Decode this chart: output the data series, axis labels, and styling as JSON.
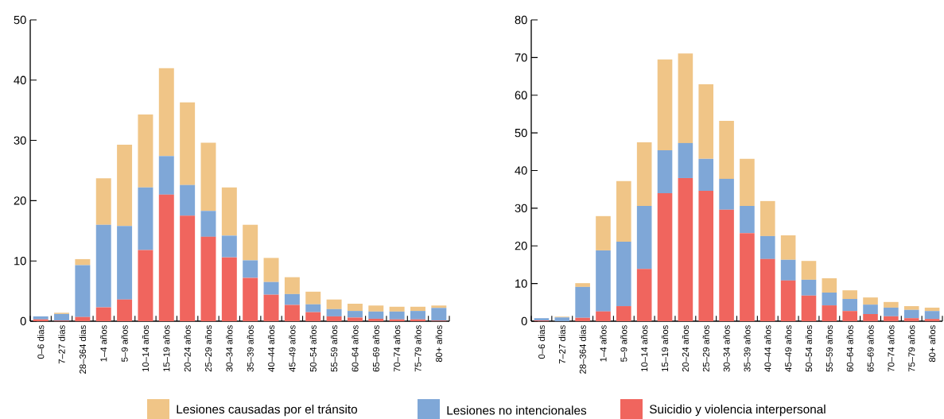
{
  "chart_data": [
    {
      "type": "bar",
      "stacked": true,
      "legend": "bottom",
      "categories": [
        "0–6 dias",
        "7–27 dias",
        "28–364 dias",
        "1–4 años",
        "5–9 años",
        "10–14 años",
        "15–19 años",
        "20–24 años",
        "25–29 años",
        "30–34 años",
        "35–39 años",
        "40–44 años",
        "45–49 años",
        "50–54 años",
        "55–59 años",
        "60–64 años",
        "65–69 años",
        "70–74 años",
        "75–79 años",
        "80+ años"
      ],
      "ylim": [
        0,
        50
      ],
      "yticks": [
        0,
        10,
        20,
        30,
        40,
        50
      ],
      "series": [
        {
          "name": "Suicidio y violencia interpersonal",
          "color": "#f0655e",
          "values": [
            0.3,
            0.1,
            0.7,
            2.3,
            3.6,
            11.8,
            21.0,
            17.5,
            14.0,
            10.6,
            7.2,
            4.4,
            2.7,
            1.5,
            0.8,
            0.6,
            0.4,
            0.3,
            0.3,
            0.1
          ]
        },
        {
          "name": "Lesiones no intencionales",
          "color": "#7fa7d7",
          "values": [
            0.5,
            1.1,
            8.6,
            13.7,
            12.2,
            10.4,
            6.4,
            5.1,
            4.3,
            3.6,
            2.9,
            2.1,
            1.8,
            1.3,
            1.2,
            1.1,
            1.2,
            1.3,
            1.4,
            2.1
          ]
        },
        {
          "name": "Lesiones causadas por el tránsito",
          "color": "#f0c587",
          "values": [
            0,
            0.2,
            1.0,
            7.7,
            13.5,
            12.1,
            14.6,
            13.7,
            11.3,
            8.0,
            5.9,
            4.0,
            2.8,
            2.1,
            1.6,
            1.2,
            1.0,
            0.8,
            0.7,
            0.4
          ]
        }
      ]
    },
    {
      "type": "bar",
      "stacked": true,
      "categories": [
        "0–6 dias",
        "7–27 dias",
        "28–364 dias",
        "1–4 años",
        "5–9 años",
        "10–14 años",
        "15–19 años",
        "20–24 años",
        "25–29 años",
        "30–34 años",
        "35–39 años",
        "40–44 años",
        "45–49 años",
        "50–54 años",
        "55–59 años",
        "60–64 años",
        "65–69 años",
        "70–74 años",
        "75–79 años",
        "80+ años"
      ],
      "ylim": [
        0,
        80
      ],
      "yticks": [
        0,
        10,
        20,
        30,
        40,
        50,
        60,
        70,
        80
      ],
      "series": [
        {
          "color": "#f0655e",
          "values": [
            0.2,
            null,
            0.9,
            2.6,
            4.0,
            13.9,
            34.0,
            38.0,
            34.6,
            29.6,
            23.4,
            16.5,
            10.8,
            6.8,
            4.2,
            2.7,
            1.9,
            1.3,
            0.8,
            0.6
          ]
        },
        {
          "color": "#7fa7d7",
          "values": [
            0.6,
            1.0,
            8.2,
            16.2,
            17.1,
            16.7,
            11.4,
            9.3,
            8.5,
            8.2,
            7.2,
            6.1,
            5.5,
            4.2,
            3.4,
            3.2,
            2.5,
            2.3,
            2.2,
            2.1
          ]
        },
        {
          "color": "#f0c587",
          "values": [
            0,
            0.2,
            1.0,
            9.1,
            16.1,
            16.9,
            24.1,
            23.8,
            19.8,
            15.4,
            12.5,
            9.3,
            6.5,
            5.0,
            3.8,
            2.3,
            1.9,
            1.5,
            1.0,
            0.9
          ]
        }
      ]
    }
  ]
}
